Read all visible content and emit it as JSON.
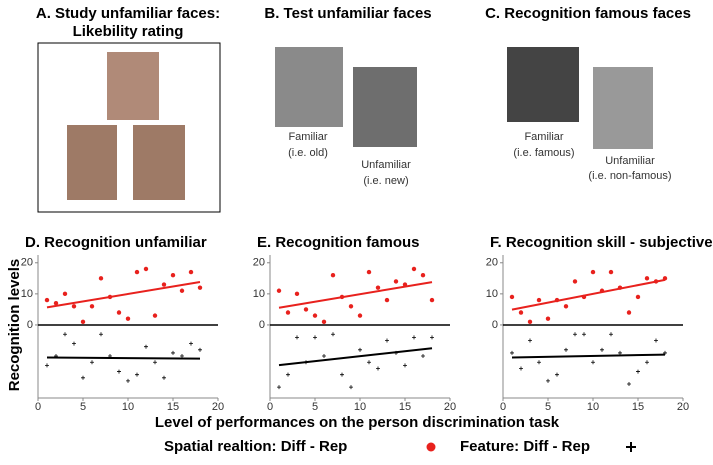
{
  "panels": {
    "a": {
      "title": [
        "A. Study unfamiliar faces:",
        "Likebility rating"
      ]
    },
    "b": {
      "title": "B. Test unfamiliar faces",
      "captions": [
        [
          "Familiar",
          "(i.e. old)"
        ],
        [
          "Unfamiliar",
          "(i.e. new)"
        ]
      ]
    },
    "c": {
      "title": "C. Recognition famous faces",
      "captions": [
        [
          "Familiar",
          "(i.e. famous)"
        ],
        [
          "Unfamiliar",
          "(i.e. non-famous)"
        ]
      ]
    }
  },
  "figure": {
    "ylabel": "Recognition levels",
    "xlabel": "Level of performances on the person discrimination task"
  },
  "chart_data": [
    {
      "type": "scatter",
      "title": "D. Recognition unfamiliar",
      "xlim": [
        0,
        20
      ],
      "xticks": [
        0,
        5,
        10,
        15,
        20
      ],
      "ylim": [
        -23.5,
        22.5
      ],
      "yticks": [
        0,
        10,
        20
      ],
      "trendline": true,
      "series": [
        {
          "name": "Spatial realtion: Diff - Rep",
          "color": "#e8211d",
          "marker": "dot",
          "x": [
            1,
            2,
            3,
            4,
            5,
            6,
            7,
            8,
            9,
            10,
            11,
            12,
            13,
            14,
            15,
            16,
            17,
            18
          ],
          "values": [
            8,
            7,
            10,
            6,
            1,
            6,
            15,
            9,
            4,
            2,
            17,
            18,
            3,
            13,
            16,
            11,
            17,
            12
          ]
        },
        {
          "name": "Feature: Diff - Rep",
          "color": "#000000",
          "marker": "plus",
          "x": [
            1,
            2,
            3,
            4,
            5,
            6,
            7,
            8,
            9,
            10,
            11,
            12,
            13,
            14,
            15,
            16,
            17,
            18
          ],
          "values": [
            -13,
            -10,
            -3,
            -6,
            -17,
            -12,
            -3,
            -10,
            -15,
            -18,
            -16,
            -7,
            -12,
            -17,
            -9,
            -10,
            -6,
            -8
          ]
        }
      ]
    },
    {
      "type": "scatter",
      "title": "E. Recognition famous",
      "xlim": [
        0,
        20
      ],
      "xticks": [
        0,
        5,
        10,
        15,
        20
      ],
      "ylim": [
        -23.5,
        22.5
      ],
      "yticks": [
        0,
        10,
        20
      ],
      "trendline": true,
      "series": [
        {
          "color": "#e8211d",
          "marker": "dot",
          "x": [
            1,
            2,
            3,
            4,
            5,
            6,
            7,
            8,
            9,
            10,
            11,
            12,
            13,
            14,
            15,
            16,
            17,
            18
          ],
          "values": [
            11,
            4,
            10,
            5,
            3,
            1,
            16,
            9,
            6,
            3,
            17,
            12,
            8,
            14,
            13,
            18,
            16,
            8
          ]
        },
        {
          "color": "#000000",
          "marker": "plus",
          "x": [
            1,
            2,
            3,
            4,
            5,
            6,
            7,
            8,
            9,
            10,
            11,
            12,
            13,
            14,
            15,
            16,
            17,
            18
          ],
          "values": [
            -20,
            -16,
            -4,
            -12,
            -4,
            -10,
            -3,
            -16,
            -20,
            -8,
            -12,
            -14,
            -5,
            -9,
            -13,
            -4,
            -10,
            -4
          ]
        }
      ]
    },
    {
      "type": "scatter",
      "title": "F. Recognition skill - subjective",
      "xlim": [
        0,
        20
      ],
      "xticks": [
        0,
        5,
        10,
        15,
        20
      ],
      "ylim": [
        -23.5,
        22.5
      ],
      "yticks": [
        0,
        10,
        20
      ],
      "trendline": true,
      "series": [
        {
          "color": "#e8211d",
          "marker": "dot",
          "x": [
            1,
            2,
            3,
            4,
            5,
            6,
            7,
            8,
            9,
            10,
            11,
            12,
            13,
            14,
            15,
            16,
            17,
            18
          ],
          "values": [
            9,
            4,
            1,
            8,
            2,
            8,
            6,
            14,
            9,
            17,
            11,
            17,
            12,
            4,
            9,
            15,
            14,
            15
          ]
        },
        {
          "color": "#000000",
          "marker": "plus",
          "x": [
            1,
            2,
            3,
            4,
            5,
            6,
            7,
            8,
            9,
            10,
            11,
            12,
            13,
            14,
            15,
            16,
            17,
            18
          ],
          "values": [
            -9,
            -14,
            -5,
            -12,
            -18,
            -16,
            -8,
            -3,
            -3,
            -12,
            -8,
            -3,
            -9,
            -19,
            -15,
            -12,
            -5,
            -9
          ]
        }
      ]
    }
  ]
}
